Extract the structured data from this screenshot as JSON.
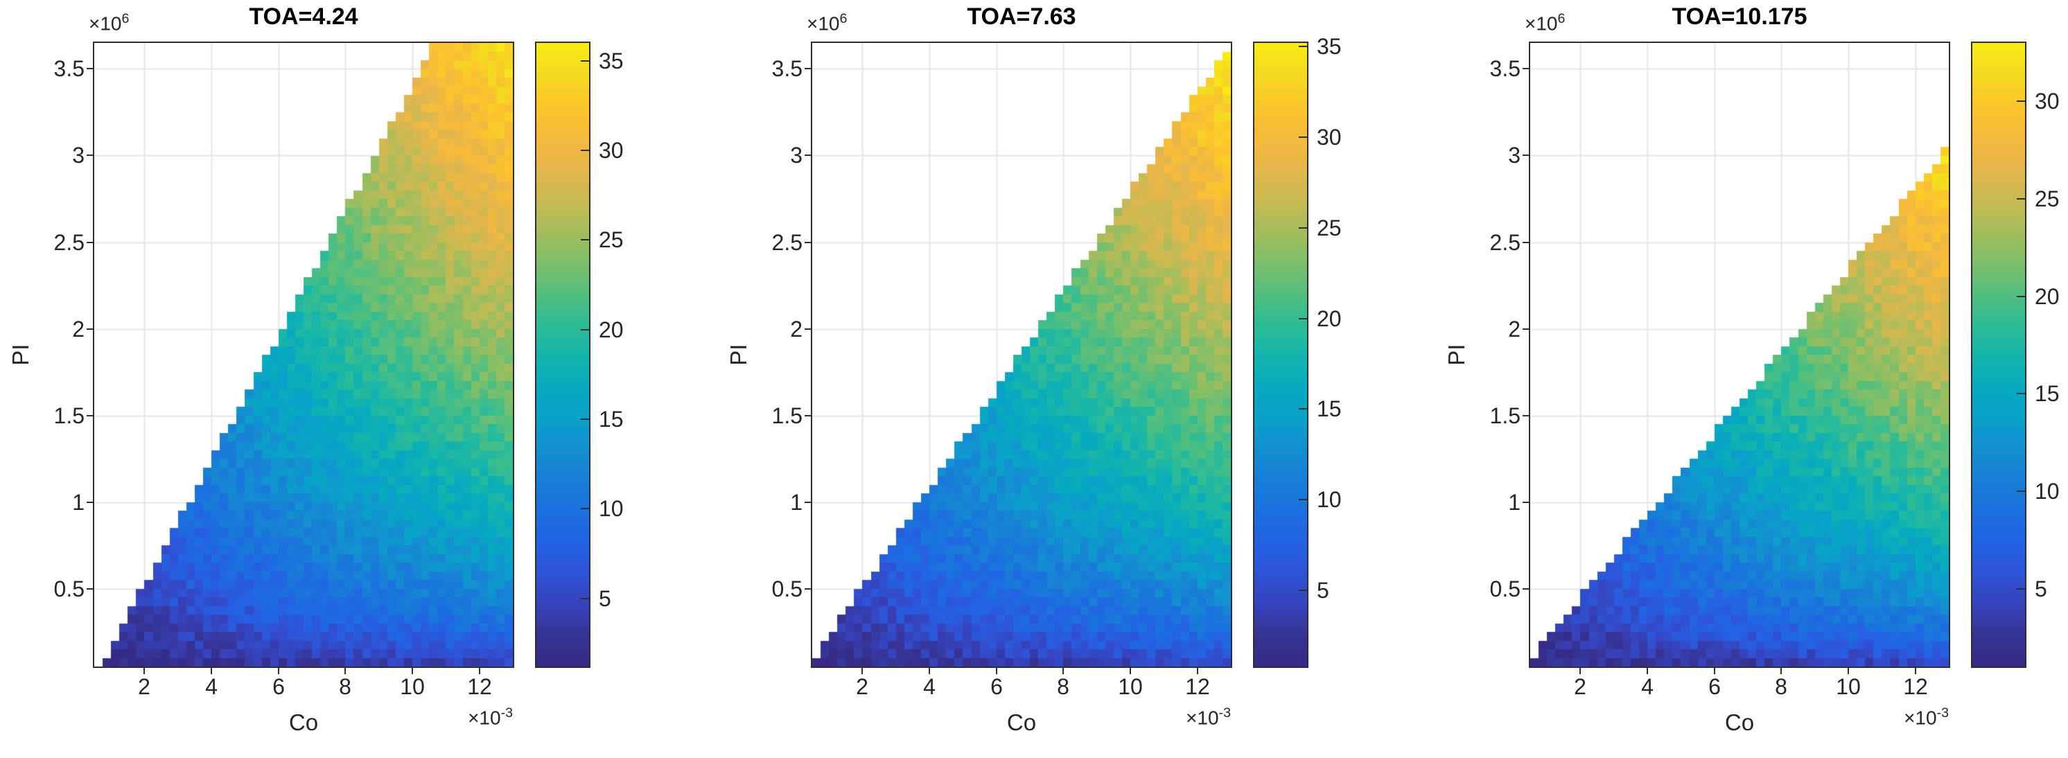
{
  "figure": {
    "background": "#ffffff",
    "text_color": "#262626",
    "axis_color": "#2f2f2f",
    "grid_color": "#e5e5e5"
  },
  "colors": {
    "parula_stops": [
      [
        0.0,
        "#352a87"
      ],
      [
        0.05,
        "#363393"
      ],
      [
        0.1,
        "#3643bc"
      ],
      [
        0.15,
        "#2e54d7"
      ],
      [
        0.2,
        "#2363e4"
      ],
      [
        0.25,
        "#1a72de"
      ],
      [
        0.3,
        "#187fd6"
      ],
      [
        0.35,
        "#1390d0"
      ],
      [
        0.4,
        "#0aa0ca"
      ],
      [
        0.45,
        "#06abbf"
      ],
      [
        0.5,
        "#15b5ab"
      ],
      [
        0.55,
        "#2fbc95"
      ],
      [
        0.6,
        "#54bf7d"
      ],
      [
        0.65,
        "#7fbf68"
      ],
      [
        0.7,
        "#a7bd5c"
      ],
      [
        0.75,
        "#c9ba51"
      ],
      [
        0.8,
        "#e5b64b"
      ],
      [
        0.85,
        "#f6bb3b"
      ],
      [
        0.9,
        "#fbc62a"
      ],
      [
        0.95,
        "#f4da21"
      ],
      [
        1.0,
        "#f9ec13"
      ]
    ]
  },
  "chart_data": [
    {
      "type": "heatmap",
      "title": "TOA=4.24",
      "xlabel": "Co",
      "ylabel": "PI",
      "x_scale_label": {
        "prefix": "×10",
        "power": "-3"
      },
      "y_scale_label": {
        "prefix": "×10",
        "power": "6"
      },
      "x_ticks": [
        2,
        4,
        6,
        8,
        10,
        12
      ],
      "y_ticks": [
        0.5,
        1,
        1.5,
        2,
        2.5,
        3,
        3.5
      ],
      "xlim": [
        0.5,
        13
      ],
      "ylim": [
        0.05,
        3.65
      ],
      "grid_on": true,
      "nx": 50,
      "ny": 72,
      "boundary": {
        "slope": 0.36,
        "x_intercept": 0.55,
        "rule": "PI/1e6 <= slope*(Co/1e-3 - x_intercept)"
      },
      "value_model": {
        "coef": 5.06,
        "form": "coef*sqrt((PI/1e6)*(Co/1e-3))",
        "noise": 1.5,
        "seed": 11
      },
      "clim": [
        1.2,
        36
      ],
      "colorbar_ticks": [
        5,
        10,
        15,
        20,
        25,
        30,
        35
      ],
      "colormap": "parula",
      "legend_position": "right-colorbar"
    },
    {
      "type": "heatmap",
      "title": "TOA=7.63",
      "xlabel": "Co",
      "ylabel": "PI",
      "x_scale_label": {
        "prefix": "×10",
        "power": "-3"
      },
      "y_scale_label": {
        "prefix": "×10",
        "power": "6"
      },
      "x_ticks": [
        2,
        4,
        6,
        8,
        10,
        12
      ],
      "y_ticks": [
        0.5,
        1,
        1.5,
        2,
        2.5,
        3,
        3.5
      ],
      "xlim": [
        0.5,
        13
      ],
      "ylim": [
        0.05,
        3.65
      ],
      "grid_on": true,
      "nx": 50,
      "ny": 72,
      "boundary": {
        "slope": 0.285,
        "x_intercept": 0.2,
        "rule": "PI/1e6 <= slope*(Co/1e-3 - x_intercept)"
      },
      "value_model": {
        "coef": 5.06,
        "form": "coef*sqrt((PI/1e6)*(Co/1e-3))",
        "noise": 1.5,
        "seed": 23
      },
      "clim": [
        0.8,
        35.2
      ],
      "colorbar_ticks": [
        5,
        10,
        15,
        20,
        25,
        30,
        35
      ],
      "colormap": "parula",
      "legend_position": "right-colorbar"
    },
    {
      "type": "heatmap",
      "title": "TOA=10.175",
      "xlabel": "Co",
      "ylabel": "PI",
      "x_scale_label": {
        "prefix": "×10",
        "power": "-3"
      },
      "y_scale_label": {
        "prefix": "×10",
        "power": "6"
      },
      "x_ticks": [
        2,
        4,
        6,
        8,
        10,
        12
      ],
      "y_ticks": [
        0.5,
        1,
        1.5,
        2,
        2.5,
        3,
        3.5
      ],
      "xlim": [
        0.5,
        13
      ],
      "ylim": [
        0.05,
        3.65
      ],
      "grid_on": true,
      "nx": 50,
      "ny": 72,
      "boundary": {
        "slope": 0.237,
        "x_intercept": 0.1,
        "rule": "PI/1e6 <= slope*(Co/1e-3 - x_intercept)"
      },
      "value_model": {
        "coef": 5.06,
        "form": "coef*sqrt((PI/1e6)*(Co/1e-3))",
        "noise": 1.5,
        "seed": 37
      },
      "clim": [
        1,
        33
      ],
      "colorbar_ticks": [
        5,
        10,
        15,
        20,
        25,
        30
      ],
      "colormap": "parula",
      "legend_position": "right-colorbar"
    }
  ]
}
